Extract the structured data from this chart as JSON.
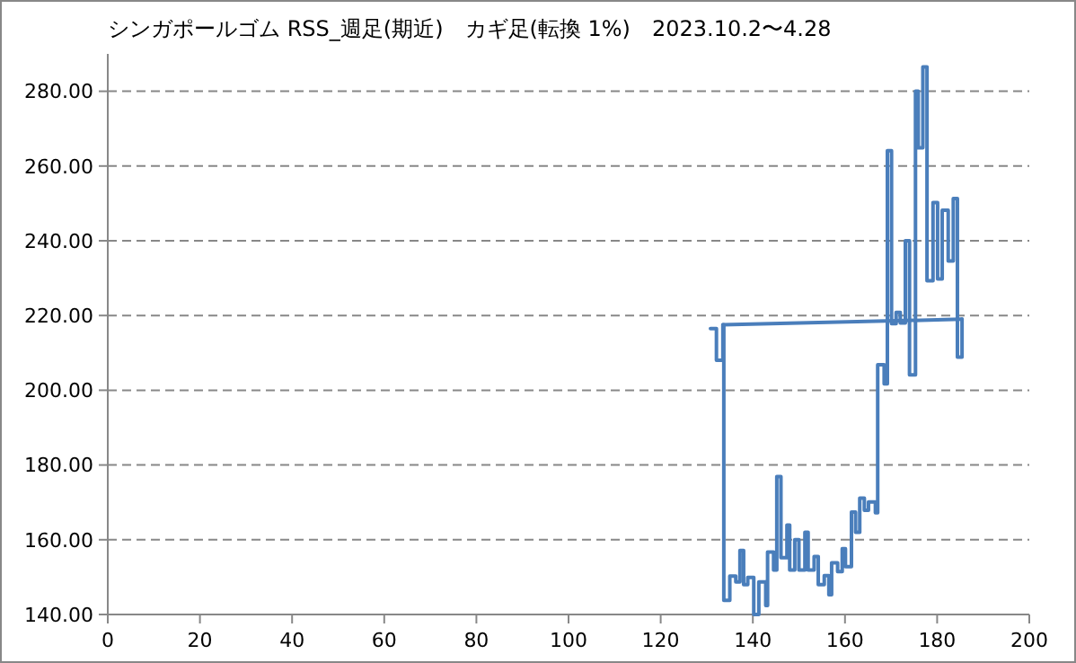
{
  "chart_data": {
    "type": "step",
    "title": "シンガポールゴム RSS_週足(期近)　カギ足(転換 1%)　2023.10.2〜4.28",
    "xlim": [
      0,
      200
    ],
    "xticks": [
      0,
      20,
      40,
      60,
      80,
      100,
      120,
      140,
      160,
      180,
      200
    ],
    "ylim": [
      140,
      290
    ],
    "yticks": [
      {
        "value": 140,
        "label": "140.00"
      },
      {
        "value": 160,
        "label": "160.00"
      },
      {
        "value": 180,
        "label": "180.00"
      },
      {
        "value": 200,
        "label": "200.00"
      },
      {
        "value": 220,
        "label": "220.00"
      },
      {
        "value": 240,
        "label": "240.00"
      },
      {
        "value": 260,
        "label": "260.00"
      },
      {
        "value": 280,
        "label": "280.00"
      }
    ],
    "grid": "y",
    "marker": "none",
    "line_style": "solid",
    "series": [
      {
        "color": "#4a7ebb",
        "x": [
          130.8,
          132.1,
          133.5,
          133.7,
          135.0,
          136.3,
          137.2,
          138.0,
          138.9,
          140.2,
          141.3,
          142.8,
          143.2,
          144.5,
          145.2,
          146.1,
          147.4,
          148.0,
          149.1,
          150.0,
          151.3,
          152.0,
          153.3,
          154.2,
          155.5,
          156.5,
          157.1,
          158.4,
          159.4,
          160.1,
          161.4,
          162.3,
          163.2,
          164.2,
          165.1,
          166.6,
          167.1,
          168.5,
          169.2,
          170.1,
          171.1,
          172.0,
          173.1,
          174.0,
          175.3,
          175.9,
          176.9,
          177.8,
          179.1,
          180.1,
          181.1,
          182.4,
          183.5,
          184.4,
          185.4
        ],
        "values": [
          216.5,
          208,
          217.5,
          143.8,
          150.3,
          148.7,
          157.1,
          148,
          149.9,
          140,
          148.7,
          142.4,
          156.7,
          151.9,
          176.9,
          155.2,
          163.9,
          151.9,
          160,
          151.9,
          162,
          151.9,
          155.5,
          148,
          150.4,
          145.3,
          153.8,
          151.5,
          157.6,
          152.8,
          167.4,
          162,
          171.1,
          167.9,
          170.1,
          167.2,
          206.8,
          201.7,
          264.1,
          217.8,
          220.8,
          218,
          240,
          204.1,
          280,
          264.9,
          286.5,
          229.3,
          250.2,
          229.8,
          248.2,
          234.6,
          251.3,
          208.9,
          219
        ]
      },
      {
        "type": "line",
        "color": "#4a7ebb",
        "x": [
          185.4,
          133.5
        ],
        "values": [
          219,
          217.5
        ]
      }
    ]
  }
}
